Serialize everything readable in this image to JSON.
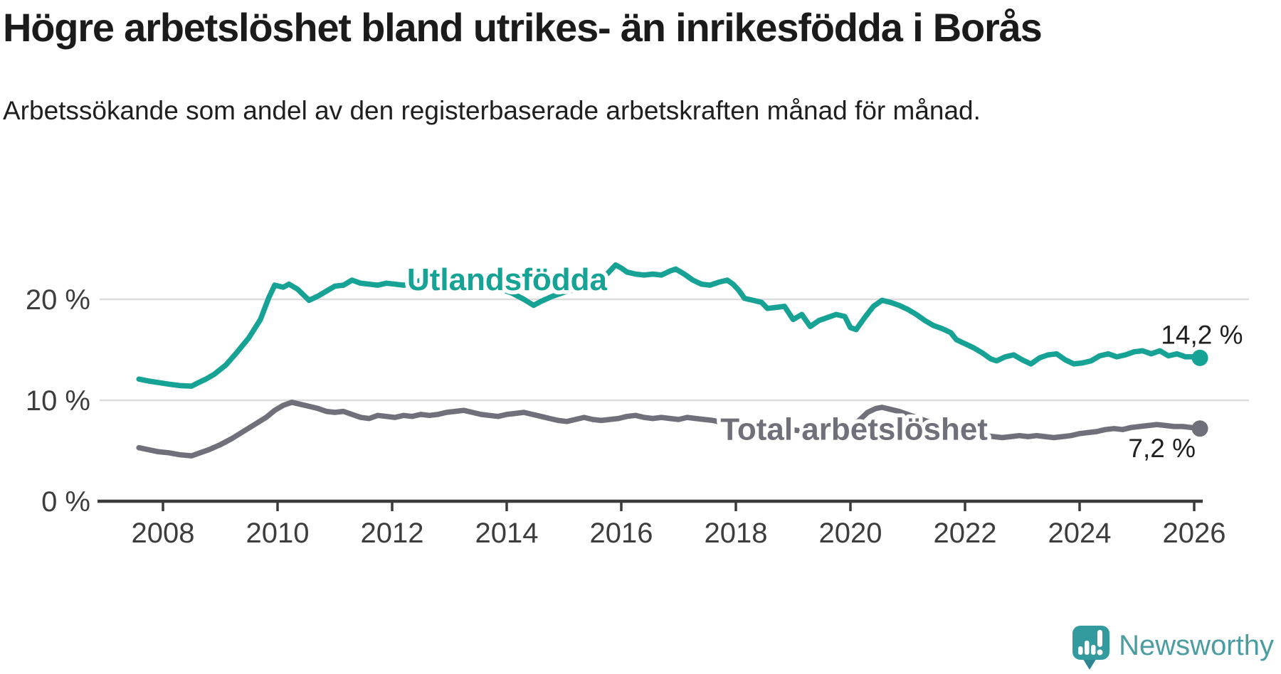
{
  "header": {
    "title": "Högre arbetslöshet bland utrikes- än inrikesfödda i Borås",
    "subtitle": "Arbetssökande som andel av den registerbaserade arbetskraften månad för månad."
  },
  "branding": {
    "logo_text": "Newsworthy",
    "logo_text_color": "#4b9da2",
    "icon_color": "#339a9d",
    "icon_tail_color": "#2c8691"
  },
  "chart_data": {
    "type": "line",
    "title": "Högre arbetslöshet bland utrikes- än inrikesfödda i Borås",
    "xlabel": "",
    "ylabel": "%",
    "x_range": [
      2007.4,
      2026.5
    ],
    "ylim": [
      0,
      25
    ],
    "grid": "horizontal",
    "legend_position": "inline-labels",
    "x_ticks": [
      2008,
      2010,
      2012,
      2014,
      2016,
      2018,
      2020,
      2022,
      2024,
      2026
    ],
    "y_ticks": [
      {
        "value": 0,
        "label": "0 %"
      },
      {
        "value": 10,
        "label": "10 %"
      },
      {
        "value": 20,
        "label": "20 %"
      }
    ],
    "colors": {
      "grid": "#dcdcdc",
      "axis": "#3b3b3b",
      "tick_label": "#3d3d3d",
      "annotation": "#1f1f1f"
    },
    "series": [
      {
        "id": "utlandsfodda",
        "name": "Utlandsfödda",
        "color": "#16a295",
        "end_label": "14,2 %",
        "end_value": 14.2,
        "label_anchor": {
          "x": 2012.26,
          "y": 20.9
        },
        "end_label_anchor": {
          "x": 2025.42,
          "y": 15.6
        },
        "points": [
          [
            2007.58,
            12.1
          ],
          [
            2007.75,
            11.9
          ],
          [
            2007.92,
            11.75
          ],
          [
            2008.1,
            11.6
          ],
          [
            2008.3,
            11.45
          ],
          [
            2008.5,
            11.4
          ],
          [
            2008.6,
            11.7
          ],
          [
            2008.75,
            12.1
          ],
          [
            2008.9,
            12.6
          ],
          [
            2009.1,
            13.5
          ],
          [
            2009.3,
            14.8
          ],
          [
            2009.5,
            16.2
          ],
          [
            2009.7,
            18.0
          ],
          [
            2009.85,
            20.2
          ],
          [
            2009.95,
            21.4
          ],
          [
            2010.1,
            21.2
          ],
          [
            2010.2,
            21.5
          ],
          [
            2010.35,
            21.0
          ],
          [
            2010.55,
            19.9
          ],
          [
            2010.7,
            20.3
          ],
          [
            2010.85,
            20.8
          ],
          [
            2011.0,
            21.3
          ],
          [
            2011.15,
            21.4
          ],
          [
            2011.3,
            21.9
          ],
          [
            2011.45,
            21.6
          ],
          [
            2011.6,
            21.5
          ],
          [
            2011.75,
            21.4
          ],
          [
            2011.9,
            21.6
          ],
          [
            2012.05,
            21.5
          ],
          [
            2012.2,
            21.4
          ],
          [
            2012.35,
            21.5
          ],
          [
            2012.5,
            21.9
          ],
          [
            2012.65,
            21.6
          ],
          [
            2012.8,
            21.5
          ],
          [
            2012.95,
            21.4
          ],
          [
            2013.1,
            21.5
          ],
          [
            2013.3,
            21.4
          ],
          [
            2013.5,
            21.5
          ],
          [
            2013.7,
            21.3
          ],
          [
            2013.9,
            21.0
          ],
          [
            2014.1,
            20.6
          ],
          [
            2014.3,
            20.0
          ],
          [
            2014.47,
            19.4
          ],
          [
            2014.6,
            19.8
          ],
          [
            2014.8,
            20.3
          ],
          [
            2015.0,
            20.7
          ],
          [
            2015.2,
            21.0
          ],
          [
            2015.4,
            21.4
          ],
          [
            2015.6,
            21.9
          ],
          [
            2015.75,
            22.5
          ],
          [
            2015.9,
            23.4
          ],
          [
            2016.0,
            23.1
          ],
          [
            2016.1,
            22.7
          ],
          [
            2016.25,
            22.5
          ],
          [
            2016.4,
            22.4
          ],
          [
            2016.55,
            22.5
          ],
          [
            2016.7,
            22.4
          ],
          [
            2016.85,
            22.8
          ],
          [
            2016.95,
            23.0
          ],
          [
            2017.1,
            22.5
          ],
          [
            2017.25,
            21.9
          ],
          [
            2017.4,
            21.5
          ],
          [
            2017.55,
            21.4
          ],
          [
            2017.7,
            21.7
          ],
          [
            2017.85,
            21.9
          ],
          [
            2017.95,
            21.5
          ],
          [
            2018.05,
            20.9
          ],
          [
            2018.15,
            20.1
          ],
          [
            2018.3,
            19.9
          ],
          [
            2018.45,
            19.7
          ],
          [
            2018.55,
            19.1
          ],
          [
            2018.7,
            19.2
          ],
          [
            2018.85,
            19.3
          ],
          [
            2019.0,
            18.0
          ],
          [
            2019.15,
            18.5
          ],
          [
            2019.3,
            17.3
          ],
          [
            2019.45,
            17.9
          ],
          [
            2019.6,
            18.2
          ],
          [
            2019.75,
            18.5
          ],
          [
            2019.9,
            18.3
          ],
          [
            2020.0,
            17.2
          ],
          [
            2020.1,
            17.0
          ],
          [
            2020.25,
            18.2
          ],
          [
            2020.4,
            19.3
          ],
          [
            2020.55,
            19.9
          ],
          [
            2020.7,
            19.7
          ],
          [
            2020.85,
            19.4
          ],
          [
            2021.0,
            19.0
          ],
          [
            2021.15,
            18.5
          ],
          [
            2021.3,
            17.9
          ],
          [
            2021.45,
            17.4
          ],
          [
            2021.6,
            17.1
          ],
          [
            2021.75,
            16.7
          ],
          [
            2021.85,
            16.0
          ],
          [
            2022.0,
            15.6
          ],
          [
            2022.15,
            15.2
          ],
          [
            2022.3,
            14.7
          ],
          [
            2022.45,
            14.1
          ],
          [
            2022.55,
            13.9
          ],
          [
            2022.7,
            14.3
          ],
          [
            2022.85,
            14.5
          ],
          [
            2023.0,
            14.0
          ],
          [
            2023.15,
            13.6
          ],
          [
            2023.3,
            14.2
          ],
          [
            2023.45,
            14.5
          ],
          [
            2023.6,
            14.6
          ],
          [
            2023.75,
            14.0
          ],
          [
            2023.9,
            13.6
          ],
          [
            2024.05,
            13.7
          ],
          [
            2024.2,
            13.9
          ],
          [
            2024.35,
            14.4
          ],
          [
            2024.5,
            14.6
          ],
          [
            2024.65,
            14.3
          ],
          [
            2024.8,
            14.5
          ],
          [
            2024.95,
            14.8
          ],
          [
            2025.1,
            14.9
          ],
          [
            2025.25,
            14.6
          ],
          [
            2025.4,
            14.9
          ],
          [
            2025.55,
            14.4
          ],
          [
            2025.7,
            14.6
          ],
          [
            2025.85,
            14.3
          ],
          [
            2026.0,
            14.3
          ],
          [
            2026.1,
            14.2
          ]
        ]
      },
      {
        "id": "total",
        "name": "Total arbetslöshet",
        "color": "#70707a",
        "end_label": "7,2 %",
        "end_value": 7.2,
        "label_anchor": {
          "x": 2017.73,
          "y": 6.1
        },
        "end_label_anchor": {
          "x": 2024.85,
          "y": 4.35
        },
        "points": [
          [
            2007.58,
            5.3
          ],
          [
            2007.75,
            5.1
          ],
          [
            2007.92,
            4.9
          ],
          [
            2008.1,
            4.8
          ],
          [
            2008.3,
            4.6
          ],
          [
            2008.5,
            4.5
          ],
          [
            2008.65,
            4.8
          ],
          [
            2008.8,
            5.1
          ],
          [
            2009.0,
            5.6
          ],
          [
            2009.2,
            6.2
          ],
          [
            2009.4,
            6.9
          ],
          [
            2009.6,
            7.6
          ],
          [
            2009.8,
            8.3
          ],
          [
            2009.95,
            9.0
          ],
          [
            2010.1,
            9.5
          ],
          [
            2010.25,
            9.8
          ],
          [
            2010.4,
            9.6
          ],
          [
            2010.55,
            9.4
          ],
          [
            2010.7,
            9.2
          ],
          [
            2010.85,
            8.9
          ],
          [
            2011.0,
            8.8
          ],
          [
            2011.15,
            8.9
          ],
          [
            2011.3,
            8.6
          ],
          [
            2011.45,
            8.3
          ],
          [
            2011.6,
            8.2
          ],
          [
            2011.75,
            8.5
          ],
          [
            2011.9,
            8.4
          ],
          [
            2012.05,
            8.3
          ],
          [
            2012.2,
            8.5
          ],
          [
            2012.35,
            8.4
          ],
          [
            2012.5,
            8.6
          ],
          [
            2012.65,
            8.5
          ],
          [
            2012.8,
            8.6
          ],
          [
            2012.95,
            8.8
          ],
          [
            2013.1,
            8.9
          ],
          [
            2013.25,
            9.0
          ],
          [
            2013.4,
            8.8
          ],
          [
            2013.55,
            8.6
          ],
          [
            2013.7,
            8.5
          ],
          [
            2013.85,
            8.4
          ],
          [
            2014.0,
            8.6
          ],
          [
            2014.15,
            8.7
          ],
          [
            2014.3,
            8.8
          ],
          [
            2014.45,
            8.6
          ],
          [
            2014.6,
            8.4
          ],
          [
            2014.75,
            8.2
          ],
          [
            2014.9,
            8.0
          ],
          [
            2015.05,
            7.9
          ],
          [
            2015.2,
            8.1
          ],
          [
            2015.35,
            8.3
          ],
          [
            2015.5,
            8.1
          ],
          [
            2015.65,
            8.0
          ],
          [
            2015.8,
            8.1
          ],
          [
            2015.95,
            8.2
          ],
          [
            2016.1,
            8.4
          ],
          [
            2016.25,
            8.5
          ],
          [
            2016.4,
            8.3
          ],
          [
            2016.55,
            8.2
          ],
          [
            2016.7,
            8.3
          ],
          [
            2016.85,
            8.2
          ],
          [
            2017.0,
            8.1
          ],
          [
            2017.15,
            8.3
          ],
          [
            2017.3,
            8.2
          ],
          [
            2017.45,
            8.1
          ],
          [
            2017.6,
            8.0
          ],
          [
            2017.75,
            7.8
          ],
          [
            2017.9,
            7.6
          ],
          [
            2018.05,
            7.5
          ],
          [
            2018.2,
            7.6
          ],
          [
            2018.35,
            7.5
          ],
          [
            2018.5,
            7.4
          ],
          [
            2018.65,
            7.3
          ],
          [
            2018.8,
            7.2
          ],
          [
            2018.95,
            7.1
          ],
          [
            2019.1,
            7.0
          ],
          [
            2019.25,
            6.9
          ],
          [
            2019.4,
            6.9
          ],
          [
            2019.55,
            7.0
          ],
          [
            2019.7,
            7.1
          ],
          [
            2019.85,
            7.2
          ],
          [
            2020.0,
            7.4
          ],
          [
            2020.15,
            8.0
          ],
          [
            2020.3,
            8.8
          ],
          [
            2020.45,
            9.2
          ],
          [
            2020.55,
            9.3
          ],
          [
            2020.7,
            9.1
          ],
          [
            2020.85,
            8.9
          ],
          [
            2021.0,
            8.6
          ],
          [
            2021.15,
            8.3
          ],
          [
            2021.3,
            8.0
          ],
          [
            2021.45,
            7.7
          ],
          [
            2021.6,
            7.5
          ],
          [
            2021.75,
            7.3
          ],
          [
            2021.9,
            7.1
          ],
          [
            2022.05,
            6.9
          ],
          [
            2022.2,
            6.7
          ],
          [
            2022.35,
            6.5
          ],
          [
            2022.5,
            6.4
          ],
          [
            2022.65,
            6.3
          ],
          [
            2022.8,
            6.4
          ],
          [
            2022.95,
            6.5
          ],
          [
            2023.1,
            6.4
          ],
          [
            2023.25,
            6.5
          ],
          [
            2023.4,
            6.4
          ],
          [
            2023.55,
            6.3
          ],
          [
            2023.7,
            6.4
          ],
          [
            2023.85,
            6.5
          ],
          [
            2024.0,
            6.7
          ],
          [
            2024.15,
            6.8
          ],
          [
            2024.3,
            6.9
          ],
          [
            2024.45,
            7.1
          ],
          [
            2024.6,
            7.2
          ],
          [
            2024.75,
            7.1
          ],
          [
            2024.9,
            7.3
          ],
          [
            2025.05,
            7.4
          ],
          [
            2025.2,
            7.5
          ],
          [
            2025.35,
            7.6
          ],
          [
            2025.5,
            7.5
          ],
          [
            2025.65,
            7.4
          ],
          [
            2025.8,
            7.4
          ],
          [
            2025.95,
            7.3
          ],
          [
            2026.1,
            7.2
          ]
        ]
      }
    ]
  }
}
